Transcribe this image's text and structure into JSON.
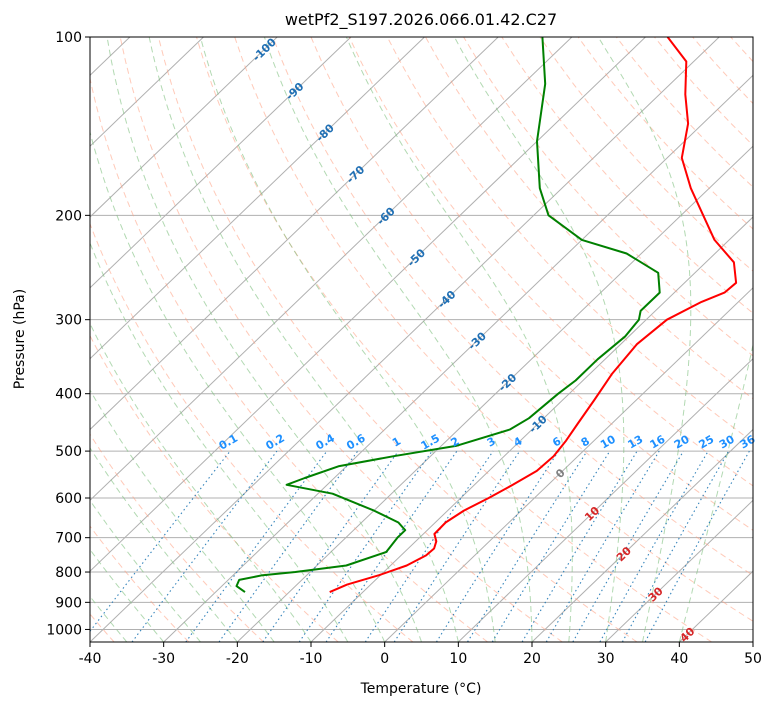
{
  "chart_data": {
    "type": "line",
    "title": "wetPf2_S197.2026.066.01.42.C27",
    "xlabel": "Temperature (°C)",
    "ylabel": "Pressure (hPa)",
    "xlim": [
      -40,
      50
    ],
    "ylim": [
      1050,
      100
    ],
    "y_scale": "log",
    "skew": "skew-T log-p",
    "grid": true,
    "x_ticks": [
      "-40",
      "-30",
      "-20",
      "-10",
      "0",
      "10",
      "20",
      "30",
      "40",
      "50"
    ],
    "y_ticks": [
      "100",
      "200",
      "300",
      "400",
      "500",
      "600",
      "700",
      "800",
      "900",
      "1000"
    ],
    "colors": {
      "temperature": "#ff0000",
      "dewpoint": "#008000",
      "isotherm": "#b0b0b0",
      "dry_adiabat": "#ff9f80",
      "moist_adiabat": "#7fbf7f",
      "mixing_ratio": "#1f77b4",
      "isotherm_label_cold": "#1f6fb4",
      "isotherm_label_zero": "#808080",
      "isotherm_label_warm": "#d62728",
      "mixing_label": "#1e90ff"
    },
    "series": [
      {
        "key": "temperature",
        "x": [
          -14.5,
          -13.2,
          -10.2,
          -7.8,
          -6.6,
          -6.5,
          -7.2,
          -8.5,
          -8.6,
          -7.8,
          -6.2,
          -4.8,
          -3.5,
          -3.3,
          -3.8,
          -4.6,
          -5.7,
          -7.0,
          -7.8,
          -7.2,
          -5.0,
          -3.2,
          -3.0,
          -6.2,
          -12.0,
          -17.0,
          -22.5,
          -28.0,
          -32.0,
          -36.5,
          -41.0,
          -47.0
        ],
        "y": [
          865,
          840,
          810,
          780,
          750,
          730,
          710,
          690,
          660,
          630,
          600,
          570,
          540,
          510,
          480,
          450,
          410,
          370,
          330,
          300,
          280,
          270,
          260,
          240,
          220,
          200,
          180,
          160,
          140,
          125,
          110,
          100
        ]
      },
      {
        "key": "dewpoint",
        "x": [
          -26.0,
          -28.0,
          -28.5,
          -26.0,
          -22.0,
          -16.0,
          -12.5,
          -13.0,
          -13.0,
          -15.0,
          -20.0,
          -28.0,
          -35.5,
          -34.0,
          -31.0,
          -25.0,
          -18.0,
          -13.0,
          -12.0,
          -11.5,
          -11.0,
          -11.0,
          -10.5,
          -11.0,
          -12.0,
          -12.0,
          -15.0,
          -22.0,
          -30.0,
          -38.0,
          -43.0,
          -50.0,
          -57.0,
          -64.0
        ],
        "y": [
          865,
          845,
          825,
          810,
          800,
          780,
          740,
          700,
          680,
          660,
          630,
          590,
          570,
          555,
          530,
          510,
          490,
          460,
          440,
          400,
          380,
          350,
          320,
          300,
          290,
          270,
          250,
          232,
          220,
          200,
          180,
          150,
          120,
          100
        ]
      }
    ],
    "isotherm_labels": [
      "-100",
      "-90",
      "-80",
      "-70",
      "-60",
      "-50",
      "-40",
      "-30",
      "-20",
      "-10",
      "0",
      "10",
      "20",
      "30",
      "40"
    ],
    "mixing_ratio_labels": [
      "0.1",
      "0.2",
      "0.4",
      "0.6",
      "1",
      "1.5",
      "2",
      "3",
      "4",
      "6",
      "8",
      "10",
      "13",
      "16",
      "20",
      "25",
      "30",
      "36"
    ]
  }
}
